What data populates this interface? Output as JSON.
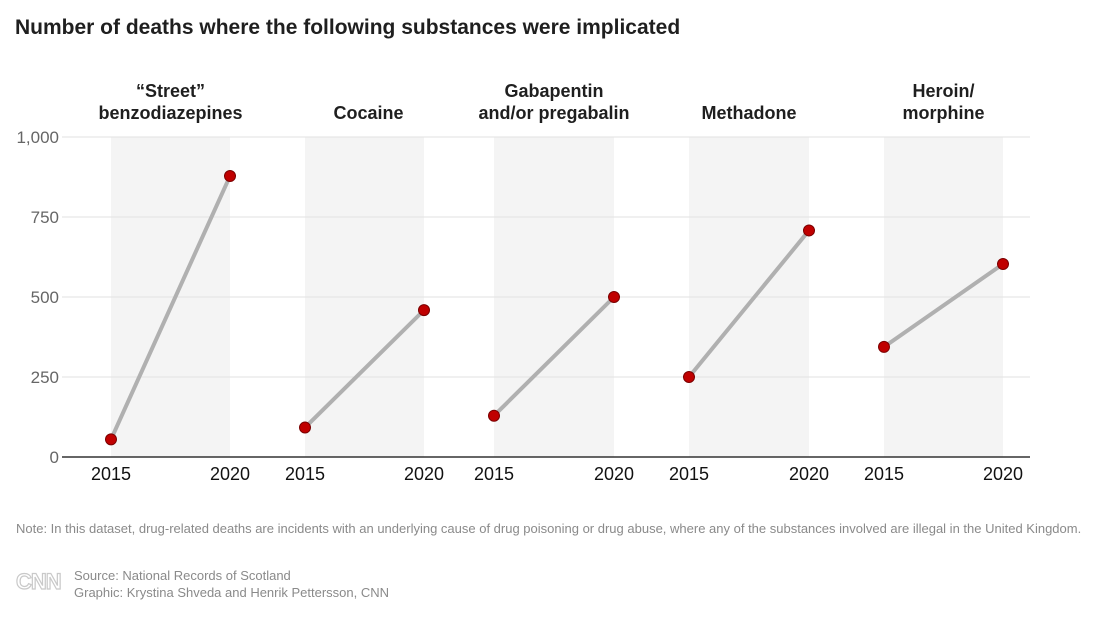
{
  "title": "Number of deaths where the following substances were implicated",
  "chart_data": {
    "type": "line",
    "ylim": [
      0,
      1000
    ],
    "yticks": [
      0,
      250,
      500,
      750,
      1000
    ],
    "ytick_labels": [
      "0",
      "250",
      "500",
      "750",
      "1,000"
    ],
    "panels": [
      {
        "title": [
          "“Street”",
          "benzodiazepines"
        ],
        "x": [
          "2015",
          "2020"
        ],
        "values": [
          55,
          878
        ]
      },
      {
        "title": [
          "Cocaine"
        ],
        "x": [
          "2015",
          "2020"
        ],
        "values": [
          92,
          459
        ]
      },
      {
        "title": [
          "Gabapentin",
          "and/or pregabalin"
        ],
        "x": [
          "2015",
          "2020"
        ],
        "values": [
          129,
          500
        ]
      },
      {
        "title": [
          "Methadone"
        ],
        "x": [
          "2015",
          "2020"
        ],
        "values": [
          250,
          708
        ]
      },
      {
        "title": [
          "Heroin/",
          "morphine"
        ],
        "x": [
          "2015",
          "2020"
        ],
        "values": [
          344,
          603
        ]
      }
    ],
    "colors": {
      "marker": "#c00000",
      "marker_stroke": "#7a0000",
      "line": "#b0b0b0",
      "panel_bg": "#f4f4f4",
      "grid": "#e2e2e2",
      "axis": "#333333"
    }
  },
  "note": "Note: In this dataset, drug-related deaths are incidents with an underlying cause of drug poisoning or drug abuse, where any of the substances involved are illegal in the United Kingdom.",
  "logo": "CNN",
  "source": "Source: National Records of Scotland",
  "graphic": "Graphic: Krystina Shveda and Henrik Pettersson, CNN"
}
